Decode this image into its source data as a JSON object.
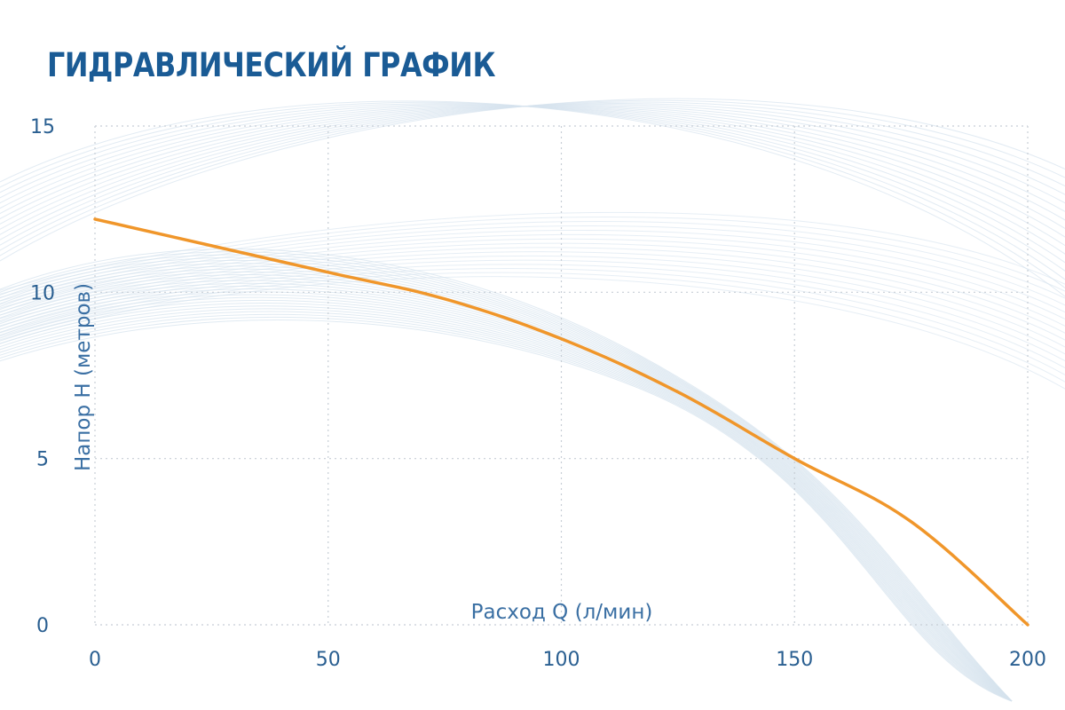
{
  "title": "ГИДРАВЛИЧЕСКИЙ ГРАФИК",
  "colors": {
    "title": "#1a5b95",
    "curve": "#f0962a",
    "grid": "#c7ced6",
    "tick_text": "#2a5f91",
    "decor_waves": "#d6e3ee"
  },
  "chart_data": {
    "type": "line",
    "title": "ГИДРАВЛИЧЕСКИЙ ГРАФИК",
    "xlabel": "Расход Q (л/мин)",
    "ylabel": "Напор H (метров)",
    "xlim": [
      0,
      200
    ],
    "ylim": [
      0,
      15
    ],
    "x_ticks": [
      "0",
      "50",
      "100",
      "150",
      "200"
    ],
    "y_ticks": [
      "0",
      "5",
      "10",
      "15"
    ],
    "grid": true,
    "series": [
      {
        "x": [
          0,
          25,
          50,
          75,
          100,
          125,
          150,
          175,
          200
        ],
        "y": [
          12.2,
          11.4,
          10.6,
          9.8,
          8.6,
          7.0,
          5.0,
          3.1,
          0.0
        ]
      }
    ]
  }
}
